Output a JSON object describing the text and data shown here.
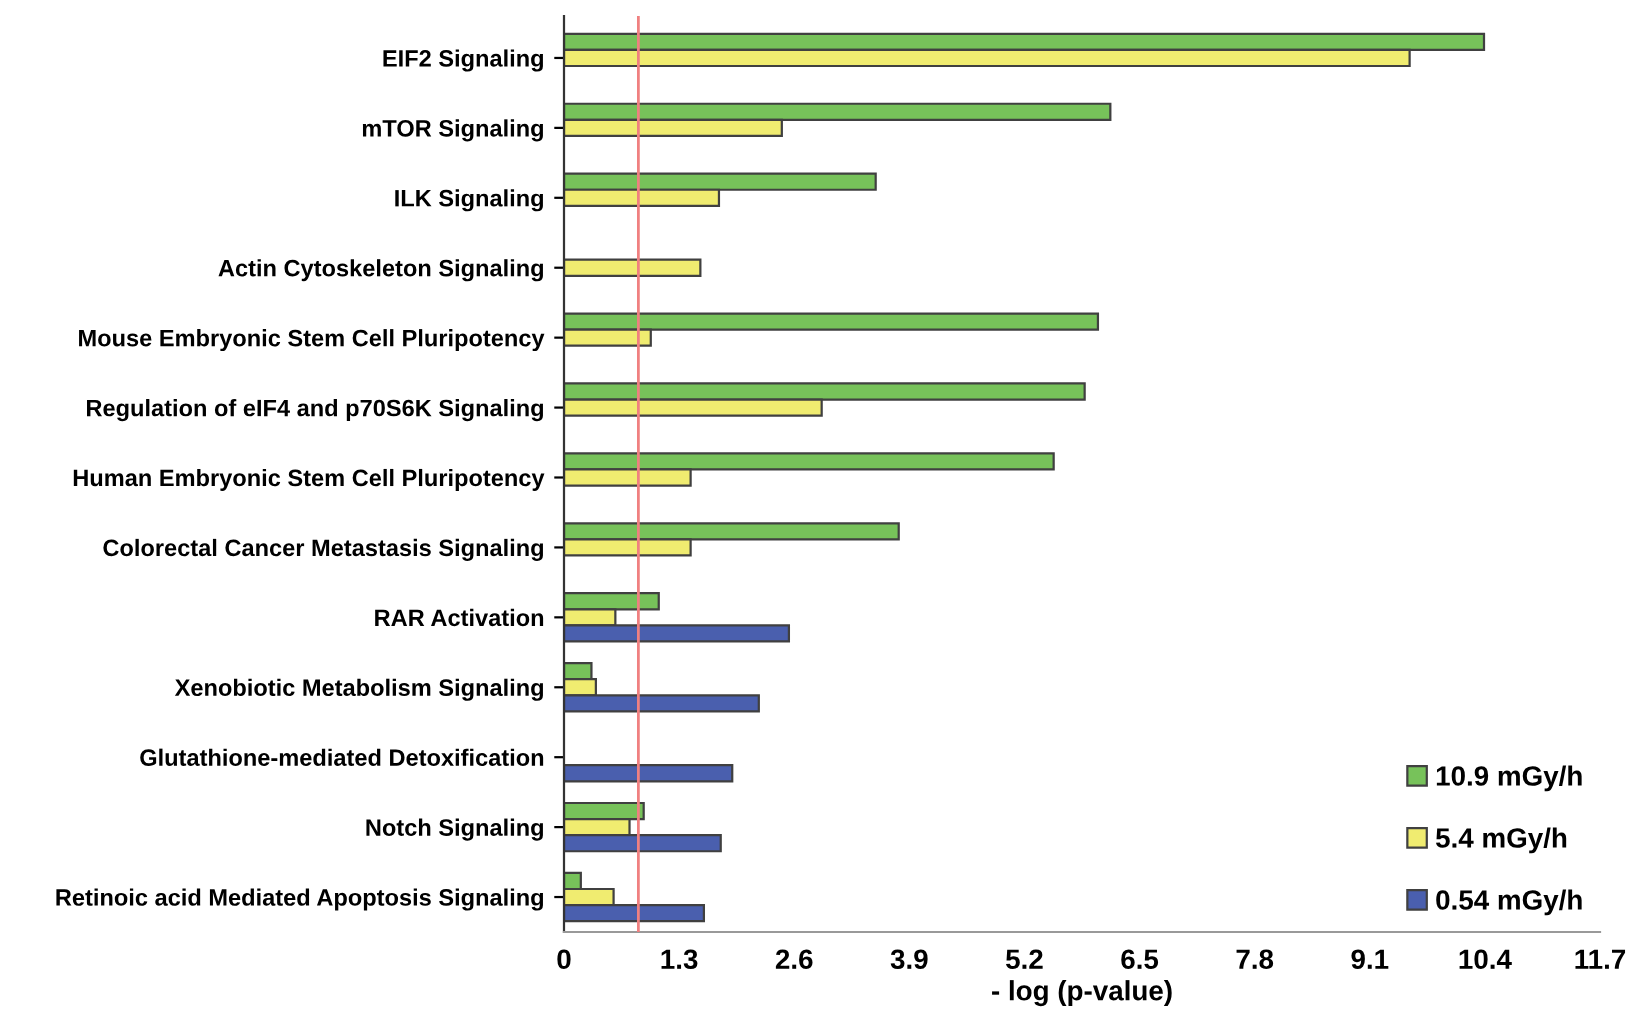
{
  "chart_data": {
    "type": "bar",
    "orientation": "horizontal",
    "xlabel": "- log (p-value)",
    "categories": [
      "EIF2 Signaling",
      "mTOR Signaling",
      "ILK Signaling",
      "Actin Cytoskeleton Signaling",
      "Mouse Embryonic Stem Cell Pluripotency",
      "Regulation of eIF4 and p70S6K Signaling",
      "Human Embryonic Stem Cell Pluripotency",
      "Colorectal Cancer Metastasis Signaling",
      "RAR Activation",
      "Xenobiotic Metabolism Signaling",
      "Glutathione-mediated Detoxification",
      "Notch Signaling",
      "Retinoic acid Mediated Apoptosis Signaling"
    ],
    "series": [
      {
        "name": "10.9 mGy/h",
        "color": "#77c25a",
        "values": [
          10.39,
          6.17,
          3.52,
          null,
          6.03,
          5.88,
          5.53,
          3.78,
          1.07,
          0.31,
          null,
          0.9,
          0.19
        ]
      },
      {
        "name": "5.4 mGy/h",
        "color": "#f0ec70",
        "values": [
          9.55,
          2.46,
          1.75,
          1.54,
          0.98,
          2.91,
          1.43,
          1.43,
          0.58,
          0.36,
          null,
          0.74,
          0.56
        ]
      },
      {
        "name": "0.54 mGy/h",
        "color": "#4a5fae",
        "values": [
          null,
          null,
          null,
          null,
          null,
          null,
          null,
          null,
          2.54,
          2.2,
          1.9,
          1.77,
          1.58
        ]
      }
    ],
    "xlim": [
      0,
      11.7
    ],
    "xticks": [
      0,
      1.3,
      2.6,
      3.9,
      5.2,
      6.5,
      7.8,
      9.1,
      10.4,
      11.7
    ],
    "ref_lines": [
      {
        "axis": "x",
        "value": 0.84,
        "color": "#f08080"
      }
    ],
    "legend": "bottom right",
    "grid": false
  }
}
